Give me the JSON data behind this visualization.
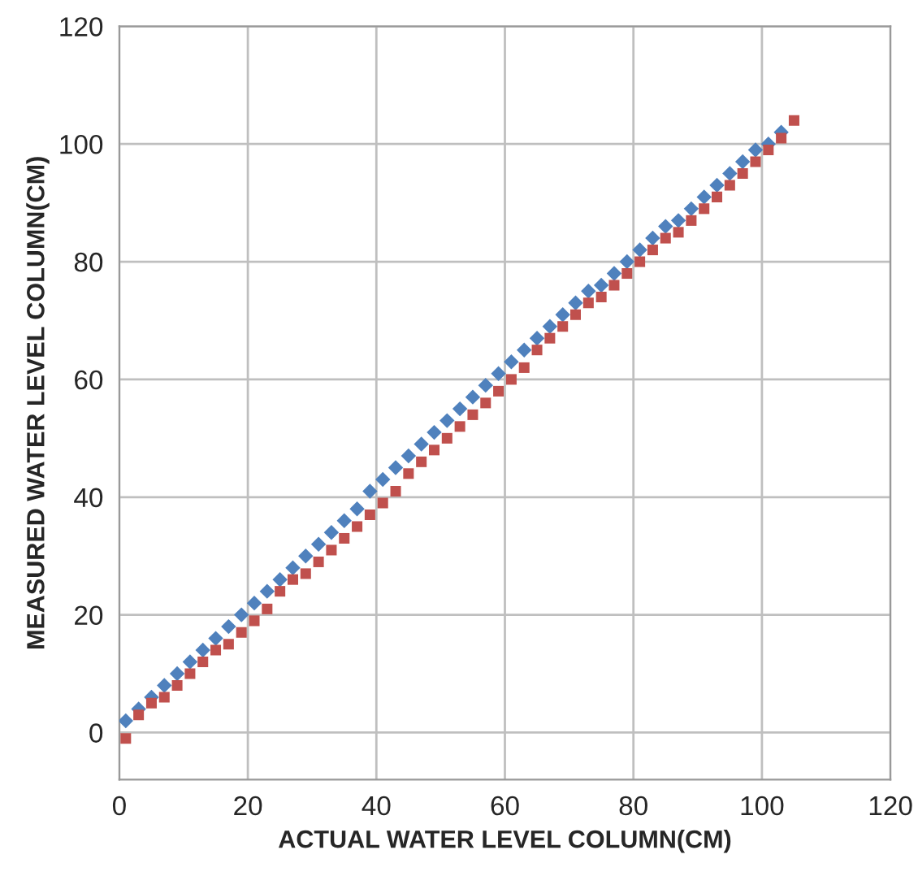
{
  "chart_data": {
    "type": "scatter",
    "xlabel": "ACTUAL WATER LEVEL COLUMN(CM)",
    "ylabel": "MEASURED WATER LEVEL COLUMN(CM)",
    "xlim": [
      0,
      120
    ],
    "xticks": [
      0,
      20,
      40,
      60,
      80,
      100,
      120
    ],
    "ylim": [
      -8,
      120
    ],
    "yticks": [
      0,
      20,
      40,
      60,
      80,
      100,
      120
    ],
    "grid": true,
    "legend": false,
    "series": [
      {
        "color": "#4f81bd",
        "marker": "diamond",
        "x": [
          1,
          3,
          5,
          7,
          9,
          11,
          13,
          15,
          17,
          19,
          21,
          23,
          25,
          27,
          29,
          31,
          33,
          35,
          37,
          39,
          41,
          43,
          45,
          47,
          49,
          51,
          53,
          55,
          57,
          59,
          61,
          63,
          65,
          67,
          69,
          71,
          73,
          75,
          77,
          79,
          81,
          83,
          85,
          87,
          89,
          91,
          93,
          95,
          97,
          99,
          101,
          103
        ],
        "values": [
          2,
          4,
          6,
          8,
          10,
          12,
          14,
          16,
          18,
          20,
          22,
          24,
          26,
          28,
          30,
          32,
          34,
          36,
          38,
          41,
          43,
          45,
          47,
          49,
          51,
          53,
          55,
          57,
          59,
          61,
          63,
          65,
          67,
          69,
          71,
          73,
          75,
          76,
          78,
          80,
          82,
          84,
          86,
          87,
          89,
          91,
          93,
          95,
          97,
          99,
          100,
          102
        ]
      },
      {
        "color": "#c0504d",
        "marker": "square",
        "x": [
          1,
          3,
          5,
          7,
          9,
          11,
          13,
          15,
          17,
          19,
          21,
          23,
          25,
          27,
          29,
          31,
          33,
          35,
          37,
          39,
          41,
          43,
          45,
          47,
          49,
          51,
          53,
          55,
          57,
          59,
          61,
          63,
          65,
          67,
          69,
          71,
          73,
          75,
          77,
          79,
          81,
          83,
          85,
          87,
          89,
          91,
          93,
          95,
          97,
          99,
          101,
          103,
          105
        ],
        "values": [
          -1,
          3,
          5,
          6,
          8,
          10,
          12,
          14,
          15,
          17,
          19,
          21,
          24,
          26,
          27,
          29,
          31,
          33,
          35,
          37,
          39,
          41,
          44,
          46,
          48,
          50,
          52,
          54,
          56,
          58,
          60,
          62,
          65,
          67,
          69,
          71,
          73,
          74,
          76,
          78,
          80,
          82,
          84,
          85,
          87,
          89,
          91,
          93,
          95,
          97,
          99,
          101,
          104
        ]
      }
    ]
  }
}
